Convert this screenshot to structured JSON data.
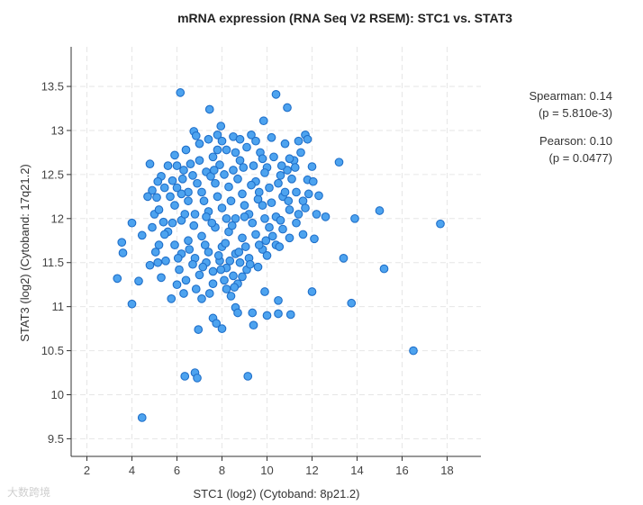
{
  "chart_data": {
    "type": "scatter",
    "title": "mRNA expression (RNA Seq V2 RSEM): STC1 vs. STAT3",
    "xlabel": "STC1 (log2) (Cytoband: 8p21.2)",
    "ylabel": "STAT3 (log2) (Cytoband: 17q21.2)",
    "xlim": [
      1.3,
      19.5
    ],
    "ylim": [
      9.3,
      13.95
    ],
    "xticks": [
      2,
      4,
      6,
      8,
      10,
      12,
      14,
      16,
      18
    ],
    "yticks": [
      9.5,
      10,
      10.5,
      11,
      11.5,
      12,
      12.5,
      13,
      13.5
    ],
    "grid": true,
    "marker_color": "#4da3ef",
    "marker_edge": "#1f6fc9",
    "points": [
      [
        6.15,
        13.43
      ],
      [
        10.4,
        13.41
      ],
      [
        7.45,
        13.24
      ],
      [
        10.9,
        13.26
      ],
      [
        9.85,
        13.11
      ],
      [
        6.75,
        12.99
      ],
      [
        6.85,
        12.94
      ],
      [
        7.95,
        13.05
      ],
      [
        7.8,
        12.95
      ],
      [
        8.5,
        12.93
      ],
      [
        9.3,
        12.95
      ],
      [
        11.7,
        12.95
      ],
      [
        11.8,
        12.9
      ],
      [
        11.4,
        12.88
      ],
      [
        13.2,
        12.64
      ],
      [
        4.8,
        12.62
      ],
      [
        5.9,
        12.72
      ],
      [
        12.3,
        12.26
      ],
      [
        12.6,
        12.02
      ],
      [
        13.9,
        12.0
      ],
      [
        15.0,
        12.09
      ],
      [
        17.7,
        11.94
      ],
      [
        12.1,
        11.77
      ],
      [
        13.4,
        11.55
      ],
      [
        15.2,
        11.43
      ],
      [
        13.75,
        11.04
      ],
      [
        16.5,
        10.5
      ],
      [
        12.0,
        11.17
      ],
      [
        11.05,
        10.91
      ],
      [
        10.5,
        10.92
      ],
      [
        10.0,
        10.9
      ],
      [
        10.5,
        11.07
      ],
      [
        9.9,
        11.17
      ],
      [
        9.35,
        10.93
      ],
      [
        8.6,
        10.99
      ],
      [
        8.7,
        10.93
      ],
      [
        9.4,
        10.79
      ],
      [
        8.0,
        10.75
      ],
      [
        6.95,
        10.74
      ],
      [
        7.6,
        10.87
      ],
      [
        7.75,
        10.81
      ],
      [
        7.1,
        11.09
      ],
      [
        7.6,
        11.26
      ],
      [
        8.2,
        11.2
      ],
      [
        8.7,
        11.26
      ],
      [
        6.8,
        10.25
      ],
      [
        6.9,
        10.19
      ],
      [
        6.35,
        10.21
      ],
      [
        9.15,
        10.21
      ],
      [
        4.45,
        9.74
      ],
      [
        3.35,
        11.32
      ],
      [
        4.0,
        11.03
      ],
      [
        4.3,
        11.29
      ],
      [
        3.6,
        11.61
      ],
      [
        3.55,
        11.73
      ],
      [
        4.0,
        11.95
      ],
      [
        4.45,
        11.81
      ],
      [
        4.8,
        11.47
      ],
      [
        5.15,
        11.5
      ],
      [
        5.3,
        11.33
      ],
      [
        5.75,
        11.09
      ],
      [
        5.5,
        11.52
      ],
      [
        5.2,
        11.7
      ],
      [
        5.4,
        11.96
      ],
      [
        5.0,
        12.05
      ],
      [
        4.9,
        12.32
      ],
      [
        5.1,
        12.24
      ],
      [
        5.45,
        12.35
      ],
      [
        5.8,
        12.43
      ],
      [
        6.0,
        12.6
      ],
      [
        6.3,
        12.55
      ],
      [
        6.5,
        12.3
      ],
      [
        6.7,
        12.49
      ],
      [
        7.0,
        12.66
      ],
      [
        7.3,
        12.53
      ],
      [
        7.6,
        12.7
      ],
      [
        7.9,
        12.61
      ],
      [
        8.2,
        12.78
      ],
      [
        8.5,
        12.55
      ],
      [
        8.8,
        12.66
      ],
      [
        9.1,
        12.81
      ],
      [
        9.4,
        12.6
      ],
      [
        9.7,
        12.75
      ],
      [
        10.0,
        12.58
      ],
      [
        10.3,
        12.7
      ],
      [
        10.6,
        12.49
      ],
      [
        10.9,
        12.55
      ],
      [
        11.2,
        12.66
      ],
      [
        11.5,
        12.75
      ],
      [
        11.8,
        12.44
      ],
      [
        12.0,
        12.59
      ],
      [
        11.6,
        12.2
      ],
      [
        11.3,
        12.3
      ],
      [
        11.0,
        12.1
      ],
      [
        10.7,
        12.25
      ],
      [
        10.4,
        12.02
      ],
      [
        10.1,
        12.35
      ],
      [
        9.8,
        12.15
      ],
      [
        9.5,
        12.42
      ],
      [
        9.2,
        12.05
      ],
      [
        8.9,
        12.28
      ],
      [
        8.6,
        12.0
      ],
      [
        8.3,
        12.36
      ],
      [
        8.0,
        12.12
      ],
      [
        7.7,
        12.4
      ],
      [
        7.4,
        12.08
      ],
      [
        7.1,
        12.3
      ],
      [
        6.8,
        12.05
      ],
      [
        6.5,
        12.2
      ],
      [
        6.2,
        11.98
      ],
      [
        5.9,
        12.15
      ],
      [
        5.6,
        11.85
      ],
      [
        5.9,
        11.7
      ],
      [
        6.2,
        11.6
      ],
      [
        6.5,
        11.75
      ],
      [
        6.8,
        11.55
      ],
      [
        7.1,
        11.8
      ],
      [
        7.4,
        11.62
      ],
      [
        7.7,
        11.9
      ],
      [
        8.0,
        11.68
      ],
      [
        8.3,
        11.85
      ],
      [
        8.6,
        11.6
      ],
      [
        8.9,
        11.78
      ],
      [
        9.2,
        11.55
      ],
      [
        9.5,
        11.82
      ],
      [
        9.8,
        11.65
      ],
      [
        10.1,
        11.9
      ],
      [
        10.4,
        11.7
      ],
      [
        10.7,
        11.88
      ],
      [
        11.0,
        11.78
      ],
      [
        11.3,
        11.95
      ],
      [
        11.6,
        11.82
      ],
      [
        6.1,
        11.42
      ],
      [
        6.4,
        11.3
      ],
      [
        6.7,
        11.48
      ],
      [
        7.0,
        11.36
      ],
      [
        7.3,
        11.5
      ],
      [
        7.6,
        11.4
      ],
      [
        7.9,
        11.52
      ],
      [
        8.2,
        11.44
      ],
      [
        8.5,
        11.35
      ],
      [
        8.8,
        11.5
      ],
      [
        9.1,
        11.42
      ],
      [
        9.6,
        11.45
      ],
      [
        10.0,
        11.58
      ],
      [
        6.0,
        11.25
      ],
      [
        6.3,
        11.15
      ],
      [
        8.1,
        11.3
      ],
      [
        8.4,
        11.12
      ],
      [
        8.9,
        11.34
      ],
      [
        5.3,
        12.48
      ],
      [
        5.6,
        12.6
      ],
      [
        5.2,
        12.1
      ],
      [
        4.9,
        11.9
      ],
      [
        5.7,
        12.25
      ],
      [
        6.0,
        12.35
      ],
      [
        6.35,
        12.05
      ],
      [
        6.6,
        12.62
      ],
      [
        6.9,
        12.4
      ],
      [
        7.2,
        12.2
      ],
      [
        7.5,
        12.48
      ],
      [
        7.8,
        12.25
      ],
      [
        8.1,
        12.5
      ],
      [
        8.4,
        12.2
      ],
      [
        8.7,
        12.45
      ],
      [
        9.0,
        12.15
      ],
      [
        9.3,
        12.38
      ],
      [
        9.6,
        12.22
      ],
      [
        9.9,
        12.52
      ],
      [
        10.2,
        12.18
      ],
      [
        10.5,
        12.4
      ],
      [
        10.8,
        12.3
      ],
      [
        11.1,
        12.45
      ],
      [
        11.4,
        12.05
      ],
      [
        11.7,
        12.12
      ],
      [
        12.2,
        12.05
      ],
      [
        7.0,
        12.85
      ],
      [
        7.4,
        12.9
      ],
      [
        8.0,
        12.88
      ],
      [
        8.8,
        12.9
      ],
      [
        9.5,
        12.88
      ],
      [
        10.2,
        12.92
      ],
      [
        10.8,
        12.85
      ],
      [
        6.4,
        12.78
      ],
      [
        7.8,
        12.78
      ],
      [
        8.6,
        12.75
      ],
      [
        9.8,
        12.68
      ],
      [
        11.0,
        12.68
      ],
      [
        6.2,
        12.28
      ],
      [
        7.3,
        12.02
      ],
      [
        8.2,
        12.0
      ],
      [
        9.0,
        12.02
      ],
      [
        9.9,
        12.0
      ],
      [
        10.6,
        11.98
      ],
      [
        7.55,
        11.95
      ],
      [
        8.45,
        11.92
      ],
      [
        9.35,
        11.95
      ],
      [
        10.25,
        11.8
      ],
      [
        5.8,
        11.95
      ],
      [
        6.75,
        11.92
      ],
      [
        7.25,
        11.7
      ],
      [
        8.15,
        11.72
      ],
      [
        9.05,
        11.68
      ],
      [
        9.95,
        11.75
      ],
      [
        6.55,
        11.65
      ],
      [
        7.85,
        11.58
      ],
      [
        8.75,
        11.62
      ],
      [
        9.65,
        11.7
      ],
      [
        10.55,
        11.68
      ],
      [
        6.05,
        11.55
      ],
      [
        5.45,
        11.82
      ],
      [
        5.05,
        11.62
      ],
      [
        4.7,
        12.25
      ],
      [
        5.15,
        12.42
      ],
      [
        7.65,
        12.55
      ],
      [
        8.95,
        12.58
      ],
      [
        10.65,
        12.6
      ],
      [
        11.25,
        12.58
      ],
      [
        7.15,
        11.45
      ],
      [
        8.35,
        11.52
      ],
      [
        9.25,
        11.48
      ],
      [
        6.85,
        11.2
      ],
      [
        7.45,
        11.15
      ],
      [
        8.55,
        11.22
      ],
      [
        7.95,
        11.42
      ],
      [
        6.25,
        12.45
      ],
      [
        9.65,
        12.3
      ],
      [
        10.95,
        12.2
      ],
      [
        11.85,
        12.28
      ],
      [
        12.05,
        12.42
      ]
    ],
    "annotations": {
      "spearman": "Spearman: 0.14",
      "spearman_p": "(p = 5.810e-3)",
      "pearson": "Pearson: 0.10",
      "pearson_p": "(p = 0.0477)"
    }
  },
  "watermark": "大数跨境"
}
